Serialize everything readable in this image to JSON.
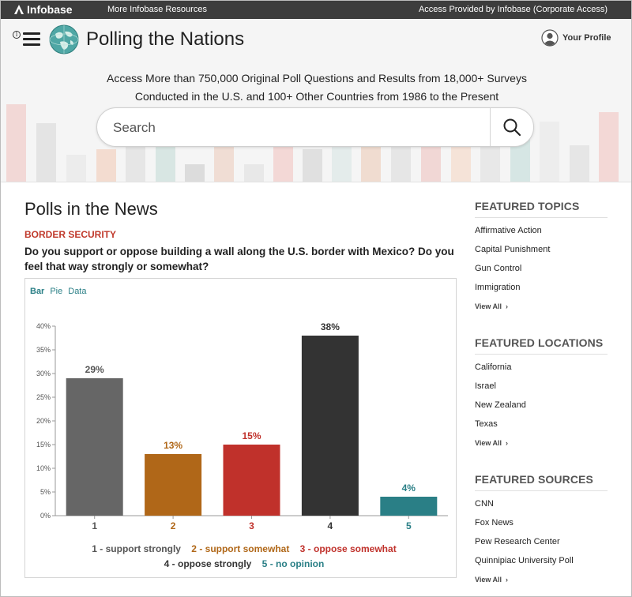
{
  "topbar": {
    "brand": "Infobase",
    "more_resources": "More Infobase Resources",
    "access": "Access Provided by Infobase (Corporate Access)"
  },
  "header": {
    "title": "Polling the Nations",
    "profile_label": "Your Profile",
    "info_glyph": "i",
    "tagline_line1": "Access More than 750,000 Original Poll Questions and Results from 18,000+ Surveys",
    "tagline_line2": "Conducted in the U.S. and 100+ Other Countries from 1986 to the Present"
  },
  "search": {
    "placeholder": "Search"
  },
  "main": {
    "heading": "Polls in the News",
    "topic": "BORDER SECURITY",
    "question": "Do you support or oppose building a wall along the U.S. border with Mexico? Do you feel that way strongly or somewhat?",
    "tabs": [
      "Bar",
      "Pie",
      "Data"
    ],
    "active_tab": "Bar"
  },
  "chart_data": {
    "type": "bar",
    "categories": [
      "1",
      "2",
      "3",
      "4",
      "5"
    ],
    "values": [
      29,
      13,
      15,
      38,
      4
    ],
    "value_labels": [
      "29%",
      "13%",
      "15%",
      "38%",
      "4%"
    ],
    "colors": [
      "#666666",
      "#b06718",
      "#c0312b",
      "#333333",
      "#2a7f86"
    ],
    "label_colors": [
      "#555555",
      "#b06718",
      "#c0312b",
      "#333333",
      "#2a7f86"
    ],
    "ylim": [
      0,
      40
    ],
    "yticks": [
      "0%",
      "5%",
      "10%",
      "15%",
      "20%",
      "25%",
      "30%",
      "35%",
      "40%"
    ],
    "legend": [
      "1 - support strongly",
      "2 - support somewhat",
      "3 - oppose somewhat",
      "4 - oppose strongly",
      "5 - no opinion"
    ],
    "legend_placement": "bottom"
  },
  "sidebar": {
    "topics": {
      "heading": "FEATURED TOPICS",
      "items": [
        "Affirmative Action",
        "Capital Punishment",
        "Gun Control",
        "Immigration"
      ],
      "view_all": "View All"
    },
    "locations": {
      "heading": "FEATURED LOCATIONS",
      "items": [
        "California",
        "Israel",
        "New Zealand",
        "Texas"
      ],
      "view_all": "View All"
    },
    "sources": {
      "heading": "FEATURED SOURCES",
      "items": [
        "CNN",
        "Fox News",
        "Pew Research Center",
        "Quinnipiac University Poll"
      ],
      "view_all": "View All"
    }
  },
  "icons": {
    "menu": "hamburger-icon",
    "logo": "globe-icon",
    "profile": "user-avatar-icon",
    "search": "search-icon",
    "chevron": "chevron-right-icon"
  }
}
